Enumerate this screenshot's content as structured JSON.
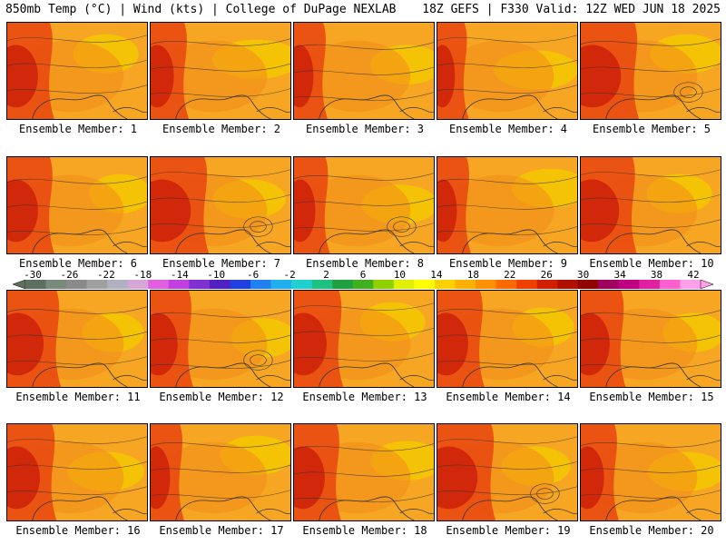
{
  "header": {
    "left": "850mb Temp (°C) | Wind (kts) | College of DuPage NEXLAB",
    "right": "18Z GEFS | F330 Valid: 12Z WED JUN 18 2025"
  },
  "members": [
    {
      "caption": "Ensemble Member: 1",
      "hot": 0.55,
      "warm": 0.7
    },
    {
      "caption": "Ensemble Member: 2",
      "hot": 0.35,
      "warm": 0.4
    },
    {
      "caption": "Ensemble Member: 3",
      "hot": 0.25,
      "warm": 0.6
    },
    {
      "caption": "Ensemble Member: 4",
      "hot": 0.2,
      "warm": 0.45
    },
    {
      "caption": "Ensemble Member: 5",
      "hot": 0.8,
      "warm": 0.6
    },
    {
      "caption": "Ensemble Member: 6",
      "hot": 0.55,
      "warm": 0.75
    },
    {
      "caption": "Ensemble Member: 7",
      "hot": 0.8,
      "warm": 0.6
    },
    {
      "caption": "Ensemble Member: 8",
      "hot": 0.3,
      "warm": 0.55
    },
    {
      "caption": "Ensemble Member: 9",
      "hot": 0.25,
      "warm": 0.55
    },
    {
      "caption": "Ensemble Member: 10",
      "hot": 0.75,
      "warm": 0.7
    },
    {
      "caption": "Ensemble Member: 11",
      "hot": 0.7,
      "warm": 0.75
    },
    {
      "caption": "Ensemble Member: 12",
      "hot": 0.45,
      "warm": 0.7
    },
    {
      "caption": "Ensemble Member: 13",
      "hot": 0.6,
      "warm": 0.7
    },
    {
      "caption": "Ensemble Member: 14",
      "hot": 0.55,
      "warm": 0.75
    },
    {
      "caption": "Ensemble Member: 15",
      "hot": 0.5,
      "warm": 0.75
    },
    {
      "caption": "Ensemble Member: 16",
      "hot": 0.6,
      "warm": 0.55
    },
    {
      "caption": "Ensemble Member: 17",
      "hot": 0.25,
      "warm": 0.6
    },
    {
      "caption": "Ensemble Member: 18",
      "hot": 0.55,
      "warm": 0.6
    },
    {
      "caption": "Ensemble Member: 19",
      "hot": 0.8,
      "warm": 0.65
    },
    {
      "caption": "Ensemble Member: 20",
      "hot": 0.35,
      "warm": 0.55
    }
  ],
  "colorbar": {
    "labels": [
      "-30",
      "-26",
      "-22",
      "-18",
      "-14",
      "-10",
      "-6",
      "-2",
      "2",
      "6",
      "10",
      "14",
      "18",
      "22",
      "26",
      "30",
      "34",
      "38",
      "42"
    ],
    "colors": [
      "#5f6f5f",
      "#7a8a7a",
      "#8a8a8a",
      "#a0a0a0",
      "#b0b0c0",
      "#d6a6d6",
      "#e060e0",
      "#c040e0",
      "#8030d0",
      "#5020c0",
      "#2040e0",
      "#2080f0",
      "#20b0f0",
      "#20d0d0",
      "#20c080",
      "#20a040",
      "#40b020",
      "#90d000",
      "#e0f000",
      "#ffff00",
      "#ffd000",
      "#ffb000",
      "#ff9000",
      "#ff6a00",
      "#f04000",
      "#d02000",
      "#b01000",
      "#900000",
      "#a00060",
      "#c00080",
      "#e020a0",
      "#ff60d0",
      "#ffa0e8"
    ]
  },
  "palette": {
    "cool": "#f5c800",
    "mild": "#f7a623",
    "warm": "#f08a1a",
    "hot": "#e84a10",
    "veryhot": "#c81a08",
    "land_line": "#333333"
  }
}
